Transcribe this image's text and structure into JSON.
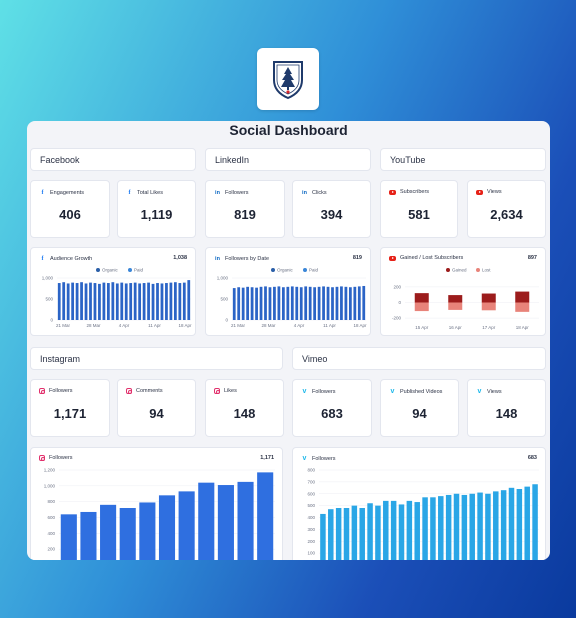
{
  "title": "Social Dashboard",
  "logo": {
    "icon": "pine-tree-shield-icon"
  },
  "colors": {
    "blue_bar": "#2b64c6",
    "ig_bar": "#2f6fe0",
    "vimeo_bar": "#2aa6e6",
    "yt_gained": "#9c1c1c",
    "yt_lost": "#e8837a",
    "organic": "#2b5fa8",
    "paid": "#3a86d8"
  },
  "sections": {
    "facebook": "Facebook",
    "linkedin": "LinkedIn",
    "youtube": "YouTube",
    "instagram": "Instagram",
    "vimeo": "Vimeo"
  },
  "kpis": {
    "fb_engagements": {
      "label": "Engagements",
      "value": "406",
      "icon": "facebook-icon"
    },
    "fb_likes": {
      "label": "Total Likes",
      "value": "1,119",
      "icon": "facebook-icon"
    },
    "li_followers": {
      "label": "Followers",
      "value": "819",
      "icon": "linkedin-icon"
    },
    "li_clicks": {
      "label": "Clicks",
      "value": "394",
      "icon": "linkedin-icon"
    },
    "yt_subscribers": {
      "label": "Subscribers",
      "value": "581",
      "icon": "youtube-icon"
    },
    "yt_views": {
      "label": "Views",
      "value": "2,634",
      "icon": "youtube-icon"
    },
    "ig_followers": {
      "label": "Followers",
      "value": "1,171",
      "icon": "instagram-icon"
    },
    "ig_comments": {
      "label": "Comments",
      "value": "94",
      "icon": "instagram-icon"
    },
    "ig_likes": {
      "label": "Likes",
      "value": "148",
      "icon": "instagram-icon"
    },
    "vm_followers": {
      "label": "Followers",
      "value": "683",
      "icon": "vimeo-icon"
    },
    "vm_published": {
      "label": "Published Videos",
      "value": "94",
      "icon": "vimeo-icon"
    },
    "vm_views": {
      "label": "Views",
      "value": "148",
      "icon": "vimeo-icon"
    }
  },
  "chart_data": [
    {
      "id": "fb",
      "type": "bar",
      "title": "Audience Growth",
      "total": "1,038",
      "legend": [
        "Organic",
        "Paid"
      ],
      "y_ticks": [
        "1,000",
        "500",
        "0"
      ],
      "ylim": [
        0,
        1000
      ],
      "x_ticks": [
        "21 Mar",
        "28 Mar",
        "4 Apr",
        "11 Apr",
        "18 Apr"
      ],
      "values": [
        880,
        900,
        870,
        890,
        880,
        900,
        870,
        890,
        880,
        860,
        890,
        880,
        900,
        870,
        890,
        870,
        880,
        890,
        870,
        880,
        890,
        860,
        880,
        870,
        880,
        890,
        900,
        880,
        890,
        950
      ]
    },
    {
      "id": "li",
      "type": "bar",
      "title": "Followers by Date",
      "total": "819",
      "legend": [
        "Organic",
        "Paid"
      ],
      "y_ticks": [
        "1,000",
        "500",
        "0"
      ],
      "ylim": [
        0,
        1000
      ],
      "x_ticks": [
        "21 Mar",
        "28 Mar",
        "4 Apr",
        "11 Apr",
        "18 Apr"
      ],
      "values": [
        760,
        780,
        770,
        790,
        780,
        770,
        790,
        800,
        780,
        790,
        800,
        780,
        790,
        800,
        790,
        780,
        800,
        790,
        780,
        790,
        800,
        790,
        780,
        790,
        800,
        790,
        780,
        790,
        800,
        810
      ]
    },
    {
      "id": "yt",
      "type": "bar",
      "title": "Gained / Lost Subscribers",
      "total": "897",
      "legend": [
        "Gained",
        "Lost"
      ],
      "y_ticks": [
        "200",
        "0",
        "-200"
      ],
      "ylim": [
        -250,
        250
      ],
      "x_ticks": [
        "15 Apr",
        "16 Apr",
        "17 Apr",
        "18 Apr"
      ],
      "series": [
        {
          "name": "Gained",
          "values": [
            120,
            95,
            115,
            140
          ]
        },
        {
          "name": "Lost",
          "values": [
            -110,
            -95,
            -100,
            -120
          ]
        }
      ]
    },
    {
      "id": "ig",
      "type": "bar",
      "title": "Followers",
      "total": "1,171",
      "y_ticks": [
        "1,200",
        "1,000",
        "800",
        "600",
        "400",
        "200",
        "0"
      ],
      "ylim": [
        0,
        1200
      ],
      "values": [
        640,
        670,
        760,
        720,
        790,
        880,
        930,
        1040,
        1010,
        1050,
        1170
      ]
    },
    {
      "id": "vm",
      "type": "bar",
      "title": "Followers",
      "total": "683",
      "y_ticks": [
        "800",
        "700",
        "600",
        "500",
        "400",
        "300",
        "200",
        "100",
        "0"
      ],
      "ylim": [
        0,
        800
      ],
      "values": [
        430,
        470,
        480,
        480,
        500,
        480,
        520,
        500,
        540,
        540,
        510,
        540,
        530,
        570,
        570,
        580,
        590,
        600,
        590,
        600,
        610,
        600,
        620,
        630,
        650,
        640,
        660,
        680
      ]
    }
  ]
}
